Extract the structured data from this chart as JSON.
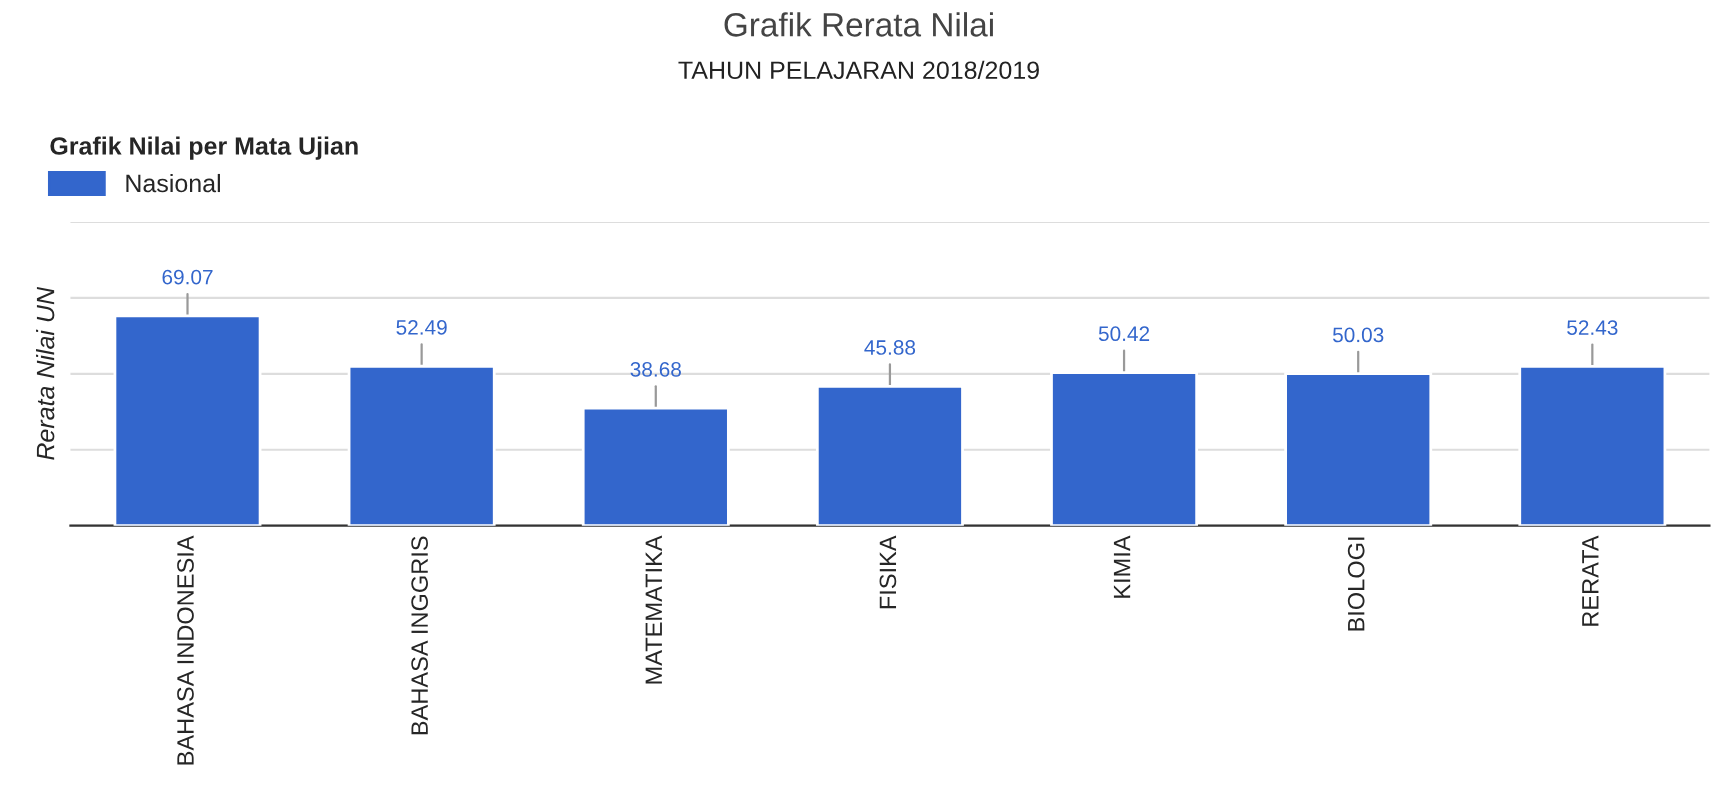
{
  "chart_data": {
    "type": "bar",
    "title": "Grafik Rerata Nilai",
    "subtitle": "TAHUN PELAJARAN 2018/2019",
    "ylabel": "Rerata Nilai UN",
    "legend_title": "Grafik Nilai per Mata Ujian",
    "categories": [
      "BAHASA INDONESIA",
      "BAHASA INGGRIS",
      "MATEMATIKA",
      "FISIKA",
      "KIMIA",
      "BIOLOGI",
      "RERATA"
    ],
    "series": [
      {
        "name": "Nasional",
        "color": "#3366cc",
        "values": [
          69.07,
          52.49,
          38.68,
          45.88,
          50.42,
          50.03,
          52.43
        ]
      }
    ],
    "ylim": [
      0,
      100
    ],
    "yticks": [
      {
        "value": 0,
        "label": null
      },
      {
        "value": 25,
        "label": null
      },
      {
        "value": 50,
        "label": null
      },
      {
        "value": 75,
        "label": null
      },
      {
        "value": 100,
        "label": null
      }
    ],
    "tick_labels": "x",
    "grid": "y",
    "legend": "top left",
    "data_labels": true
  }
}
